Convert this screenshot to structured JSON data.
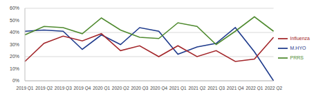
{
  "chart_data": {
    "type": "line",
    "categories": [
      "2019 Q1",
      "2019 Q2",
      "2019 Q3",
      "2019 Q4",
      "2020 Q1",
      "2020 Q2",
      "2020 Q3",
      "2020 Q4",
      "2021 Q1",
      "2021 Q2",
      "2021 Q3",
      "2021 Q4",
      "2022 Q1",
      "2022 Q2"
    ],
    "series": [
      {
        "name": "M.HYO",
        "color": "#1f3b8c",
        "values": [
          41,
          42,
          41,
          26,
          38,
          30,
          44,
          41,
          22,
          28,
          31,
          44,
          24,
          0
        ]
      },
      {
        "name": "Influenza",
        "color": "#a3262a",
        "values": [
          16,
          31,
          37,
          33,
          39,
          25,
          29,
          20,
          29,
          20,
          25,
          16,
          18,
          36
        ]
      },
      {
        "name": "PRRS",
        "color": "#4f8a2f",
        "values": [
          38,
          45,
          44,
          39,
          52,
          42,
          36,
          35,
          48,
          45,
          30,
          41,
          53,
          41
        ]
      }
    ],
    "ylim": [
      0,
      60
    ],
    "yticks": [
      {
        "value": 0,
        "label": "0%"
      },
      {
        "value": 10,
        "label": "10%"
      },
      {
        "value": 20,
        "label": "20%"
      },
      {
        "value": 30,
        "label": "30%"
      },
      {
        "value": 40,
        "label": "40%"
      },
      {
        "value": 50,
        "label": "50%"
      },
      {
        "value": 60,
        "label": "60%"
      }
    ],
    "grid": true,
    "legend": "right"
  }
}
